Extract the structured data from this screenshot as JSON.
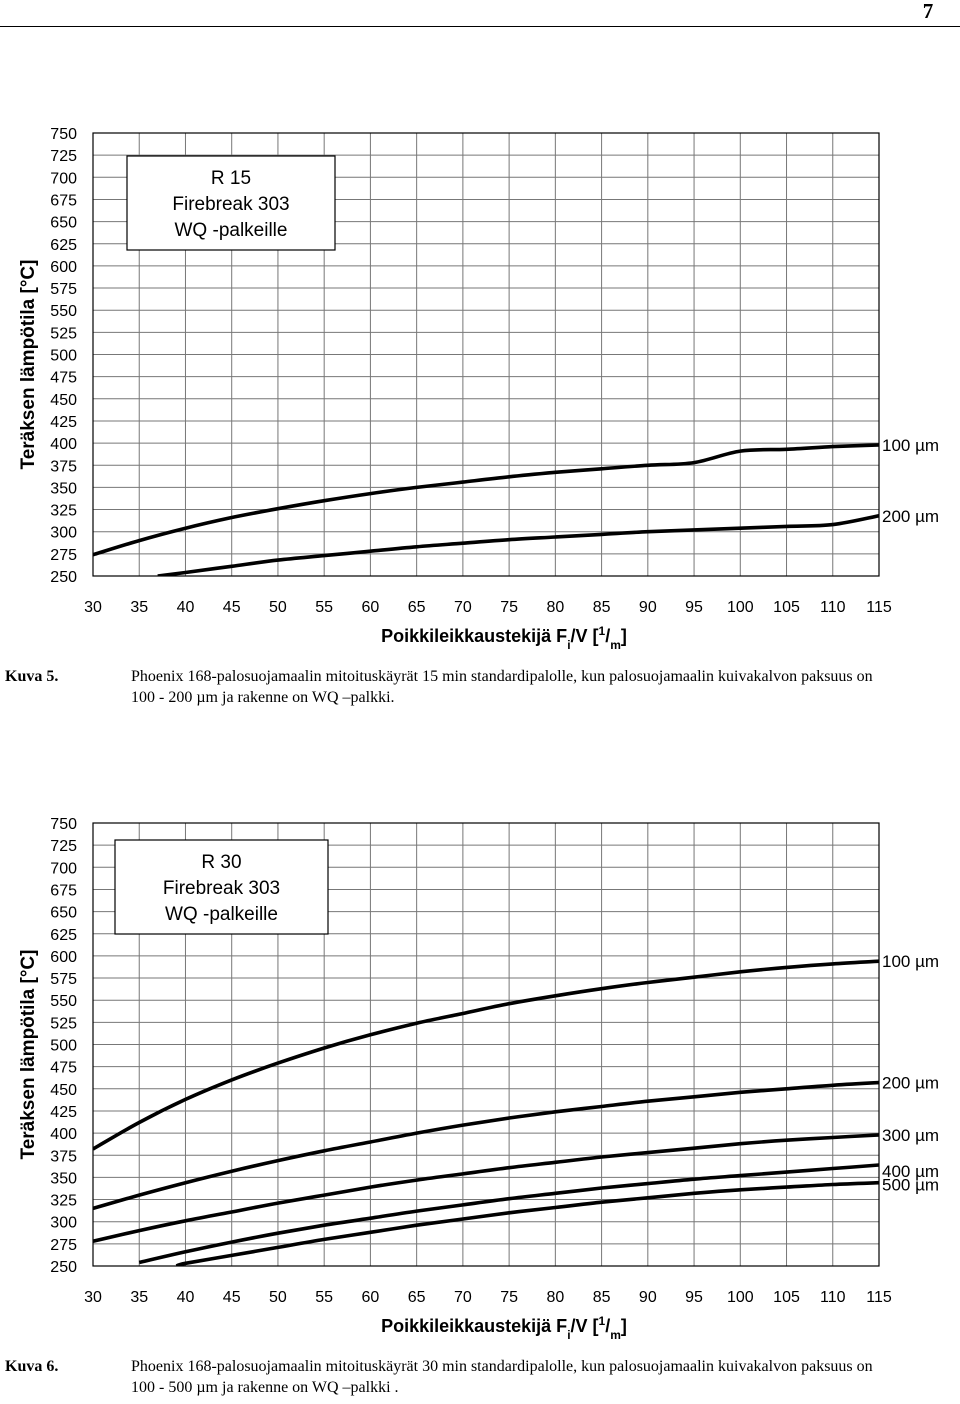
{
  "page": {
    "number": "7"
  },
  "figures": [
    {
      "label": "Kuva 5.",
      "caption": "Phoenix 168-palosuojamaalin mitoituskäyrät 15 min standardipalolle, kun palosuojamaalin kuivakalvon paksuus on 100 - 200 µm ja rakenne on WQ –palkki."
    },
    {
      "label": "Kuva 6.",
      "caption": "Phoenix 168-palosuojamaalin mitoituskäyrät 30 min standardipalolle, kun palosuojamaalin kuivakalvon paksuus on 100 - 500 µm ja rakenne on WQ –palkki ."
    }
  ],
  "chart_data": [
    {
      "type": "line",
      "legend_lines": [
        "R 15",
        "Firebreak 303",
        "WQ -palkeille"
      ],
      "ylabel": "Teräksen lämpötila [°C]",
      "xlabel_main": "Poikkileikkaustekijä F",
      "xlabel_sub_i": "i",
      "xlabel_mid": "/V [",
      "xlabel_sup": "1",
      "xlabel_slash": "/",
      "xlabel_sub_m": "m",
      "xlabel_end": "]",
      "xlim": [
        30,
        115
      ],
      "ylim": [
        250,
        750
      ],
      "x_ticks": [
        30,
        35,
        40,
        45,
        50,
        55,
        60,
        65,
        70,
        75,
        80,
        85,
        90,
        95,
        100,
        105,
        110,
        115
      ],
      "y_ticks": [
        250,
        275,
        300,
        325,
        350,
        375,
        400,
        425,
        450,
        475,
        500,
        525,
        550,
        575,
        600,
        625,
        650,
        675,
        700,
        725,
        750
      ],
      "grid": true,
      "series": [
        {
          "name": "100 µm",
          "x": [
            30,
            35,
            40,
            45,
            50,
            55,
            60,
            65,
            70,
            75,
            80,
            85,
            90,
            95,
            100,
            105,
            110,
            115
          ],
          "values": [
            274,
            290,
            304,
            316,
            326,
            335,
            343,
            350,
            356,
            362,
            367,
            371,
            375,
            378,
            391,
            393,
            396,
            398
          ]
        },
        {
          "name": "200 µm",
          "x": [
            37,
            40,
            45,
            50,
            55,
            60,
            65,
            70,
            75,
            80,
            85,
            90,
            95,
            100,
            105,
            110,
            115
          ],
          "values": [
            250,
            254,
            261,
            268,
            273,
            278,
            283,
            287,
            291,
            294,
            297,
            300,
            302,
            304,
            306,
            308,
            318
          ]
        }
      ]
    },
    {
      "type": "line",
      "legend_lines": [
        "R 30",
        "Firebreak 303",
        "WQ -palkeille"
      ],
      "ylabel": "Teräksen lämpötila [°C]",
      "xlabel_main": "Poikkileikkaustekijä F",
      "xlabel_sub_i": "i",
      "xlabel_mid": "/V [",
      "xlabel_sup": "1",
      "xlabel_slash": "/",
      "xlabel_sub_m": "m",
      "xlabel_end": "]",
      "xlim": [
        30,
        115
      ],
      "ylim": [
        250,
        750
      ],
      "x_ticks": [
        30,
        35,
        40,
        45,
        50,
        55,
        60,
        65,
        70,
        75,
        80,
        85,
        90,
        95,
        100,
        105,
        110,
        115
      ],
      "y_ticks": [
        250,
        275,
        300,
        325,
        350,
        375,
        400,
        425,
        450,
        475,
        500,
        525,
        550,
        575,
        600,
        625,
        650,
        675,
        700,
        725,
        750
      ],
      "grid": true,
      "series": [
        {
          "name": "100 µm",
          "x": [
            30,
            35,
            40,
            45,
            50,
            55,
            60,
            65,
            70,
            75,
            80,
            85,
            90,
            95,
            100,
            105,
            110,
            115
          ],
          "values": [
            382,
            412,
            438,
            460,
            479,
            496,
            511,
            524,
            535,
            546,
            555,
            563,
            570,
            576,
            582,
            587,
            591,
            594
          ]
        },
        {
          "name": "200 µm",
          "x": [
            30,
            35,
            40,
            45,
            50,
            55,
            60,
            65,
            70,
            75,
            80,
            85,
            90,
            95,
            100,
            105,
            110,
            115
          ],
          "values": [
            315,
            330,
            344,
            357,
            369,
            380,
            390,
            400,
            409,
            417,
            424,
            430,
            436,
            441,
            446,
            450,
            454,
            457
          ]
        },
        {
          "name": "300 µm",
          "x": [
            30,
            35,
            40,
            45,
            50,
            55,
            60,
            65,
            70,
            75,
            80,
            85,
            90,
            95,
            100,
            105,
            110,
            115
          ],
          "values": [
            278,
            290,
            301,
            311,
            321,
            330,
            339,
            347,
            354,
            361,
            367,
            373,
            378,
            383,
            388,
            392,
            395,
            398
          ]
        },
        {
          "name": "400 µm",
          "x": [
            35,
            40,
            45,
            50,
            55,
            60,
            65,
            70,
            75,
            80,
            85,
            90,
            95,
            100,
            105,
            110,
            115
          ],
          "values": [
            254,
            266,
            277,
            287,
            296,
            304,
            312,
            319,
            326,
            332,
            338,
            343,
            348,
            352,
            356,
            360,
            364
          ]
        },
        {
          "name": "500 µm",
          "x": [
            39,
            40,
            45,
            50,
            55,
            60,
            65,
            70,
            75,
            80,
            85,
            90,
            95,
            100,
            105,
            110,
            115
          ],
          "values": [
            250,
            253,
            262,
            271,
            280,
            288,
            296,
            303,
            310,
            316,
            322,
            327,
            332,
            336,
            339,
            342,
            344
          ]
        }
      ]
    }
  ]
}
